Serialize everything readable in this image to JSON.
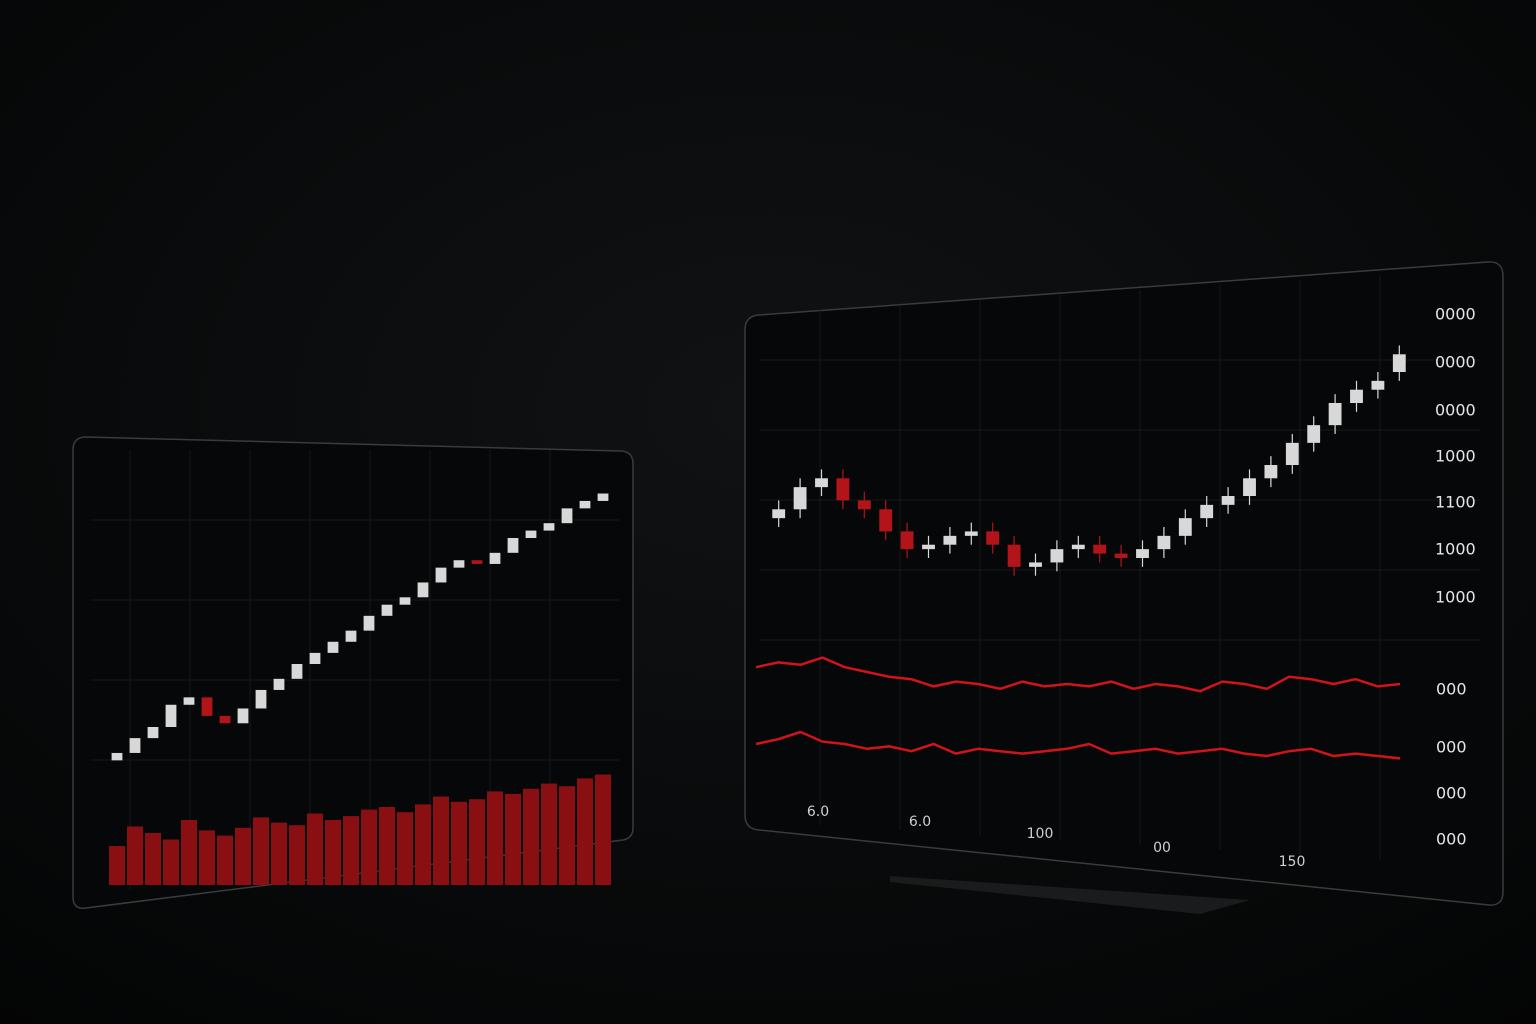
{
  "chart_data": [
    {
      "type": "candlestick",
      "up_color": "#d8d8d8",
      "down_color": "#b3141a",
      "open": [
        18,
        20,
        24,
        27,
        33,
        35,
        30,
        28,
        32,
        37,
        40,
        44,
        47,
        50,
        53,
        57,
        60,
        62,
        66,
        70,
        72,
        71,
        74,
        78,
        80,
        82,
        86,
        88
      ],
      "close": [
        20,
        24,
        27,
        33,
        35,
        30,
        28,
        32,
        37,
        40,
        44,
        47,
        50,
        53,
        57,
        60,
        62,
        66,
        70,
        72,
        71,
        74,
        78,
        80,
        82,
        86,
        88,
        90
      ],
      "ylim": [
        10,
        95
      ],
      "volume": {
        "color": "#8a0f12",
        "values": [
          30,
          45,
          40,
          35,
          50,
          42,
          38,
          44,
          52,
          48,
          46,
          55,
          50,
          53,
          58,
          60,
          56,
          62,
          68,
          64,
          66,
          72,
          70,
          74,
          78,
          76,
          82,
          85
        ],
        "ylim": [
          0,
          100
        ]
      }
    },
    {
      "type": "candlestick",
      "up_color": "#d8d8d8",
      "down_color": "#b3141a",
      "open": [
        53,
        55,
        60,
        62,
        57,
        55,
        50,
        46,
        47,
        49,
        50,
        47,
        42,
        43,
        46,
        47,
        45,
        44,
        46,
        49,
        53,
        56,
        58,
        62,
        65,
        70,
        74,
        79,
        82,
        86
      ],
      "high": [
        57,
        62,
        64,
        64,
        59,
        57,
        52,
        49,
        51,
        52,
        52,
        49,
        45,
        48,
        49,
        49,
        47,
        48,
        51,
        55,
        58,
        60,
        64,
        67,
        72,
        76,
        81,
        84,
        86,
        92
      ],
      "low": [
        51,
        53,
        58,
        55,
        53,
        48,
        44,
        44,
        45,
        47,
        45,
        40,
        40,
        41,
        44,
        43,
        42,
        42,
        44,
        47,
        51,
        54,
        56,
        60,
        63,
        68,
        72,
        77,
        80,
        84
      ],
      "close": [
        55,
        60,
        62,
        57,
        55,
        50,
        46,
        47,
        49,
        50,
        47,
        42,
        43,
        46,
        47,
        45,
        44,
        46,
        49,
        53,
        56,
        58,
        62,
        65,
        70,
        74,
        79,
        82,
        84,
        90
      ],
      "ylim": [
        30,
        100
      ],
      "y_labels": [
        "0000",
        "0000",
        "0000",
        "1000",
        "1100",
        "1000",
        "1000"
      ],
      "indicator_labels": [
        "000",
        "000",
        "000",
        "000"
      ],
      "x_labels": [
        "6.0",
        "6.0",
        "100",
        "00",
        "150"
      ],
      "indicator": {
        "ylim": [
          0,
          100
        ],
        "series": [
          {
            "color": "#d0141a",
            "values": [
              72,
              74,
              73,
              76,
              72,
              70,
              68,
              67,
              64,
              66,
              65,
              63,
              66,
              64,
              65,
              64,
              66,
              63,
              65,
              64,
              62,
              66,
              65,
              63,
              68,
              67,
              65,
              67,
              64,
              65
            ]
          },
          {
            "color": "#d0141a",
            "values": [
              40,
              42,
              45,
              41,
              40,
              38,
              39,
              37,
              40,
              36,
              38,
              37,
              36,
              37,
              38,
              40,
              36,
              37,
              38,
              36,
              37,
              38,
              36,
              35,
              37,
              38,
              35,
              36,
              35,
              34
            ]
          }
        ]
      }
    }
  ]
}
